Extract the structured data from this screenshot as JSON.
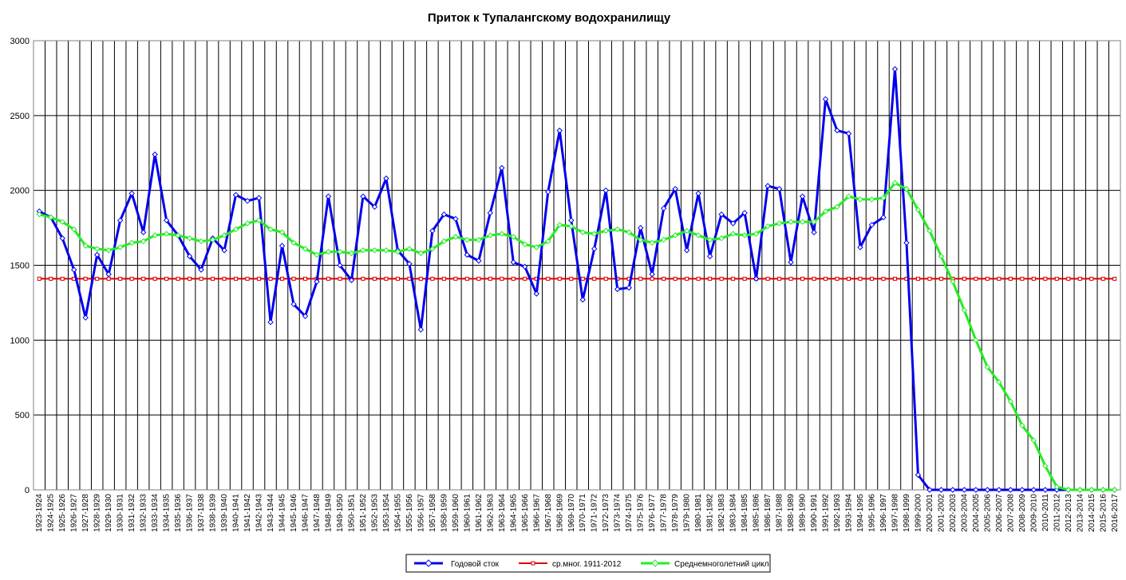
{
  "chart_data": {
    "type": "line",
    "title": "Приток к Тупалангскому водохранилищу",
    "xlabel": "",
    "ylabel": "",
    "ylim": [
      0,
      3000
    ],
    "yticks": [
      0,
      500,
      1000,
      1500,
      2000,
      2500,
      3000
    ],
    "grid": true,
    "legend_position": "bottom-center",
    "categories": [
      "1923-1924",
      "1924-1925",
      "1925-1926",
      "1926-1927",
      "1927-1928",
      "1928-1929",
      "1929-1930",
      "1930-1931",
      "1931-1932",
      "1932-1933",
      "1933-1934",
      "1934-1935",
      "1935-1936",
      "1936-1937",
      "1937-1938",
      "1938-1939",
      "1939-1940",
      "1940-1941",
      "1941-1942",
      "1942-1943",
      "1943-1944",
      "1944-1945",
      "1945-1946",
      "1946-1947",
      "1947-1948",
      "1948-1949",
      "1949-1950",
      "1950-1951",
      "1951-1952",
      "1952-1953",
      "1953-1954",
      "1954-1955",
      "1955-1956",
      "1956-1957",
      "1957-1958",
      "1958-1959",
      "1959-1960",
      "1960-1961",
      "1961-1962",
      "1962-1963",
      "1963-1964",
      "1964-1965",
      "1965-1966",
      "1966-1967",
      "1967-1968",
      "1968-1969",
      "1969-1970",
      "1970-1971",
      "1971-1972",
      "1972-1973",
      "1973-1974",
      "1974-1975",
      "1975-1976",
      "1976-1977",
      "1977-1978",
      "1978-1979",
      "1979-1980",
      "1980-1981",
      "1981-1982",
      "1982-1983",
      "1983-1984",
      "1984-1985",
      "1985-1986",
      "1986-1987",
      "1987-1988",
      "1988-1989",
      "1989-1990",
      "1990-1991",
      "1991-1992",
      "1992-1993",
      "1993-1994",
      "1994-1995",
      "1995-1996",
      "1996-1997",
      "1997-1998",
      "1998-1999",
      "1999-2000",
      "2000-2001",
      "2001-2002",
      "2002-2003",
      "2003-2004",
      "2004-2005",
      "2005-2006",
      "2006-2007",
      "2007-2008",
      "2008-2009",
      "2009-2010",
      "2010-2011",
      "2011-2012",
      "2012-2013",
      "2013-2014",
      "2014-2015",
      "2015-2016",
      "2016-2017"
    ],
    "series": [
      {
        "name": "Годовой сток",
        "color": "#0000ee",
        "marker": "diamond",
        "values": [
          1860,
          1820,
          1680,
          1470,
          1150,
          1570,
          1440,
          1800,
          1980,
          1720,
          2240,
          1800,
          1700,
          1560,
          1470,
          1680,
          1600,
          1970,
          1930,
          1950,
          1120,
          1630,
          1240,
          1160,
          1390,
          1960,
          1500,
          1400,
          1960,
          1890,
          2080,
          1600,
          1510,
          1070,
          1730,
          1840,
          1810,
          1570,
          1530,
          1850,
          2150,
          1520,
          1490,
          1310,
          1990,
          2400,
          1800,
          1270,
          1610,
          2000,
          1340,
          1350,
          1750,
          1440,
          1880,
          2010,
          1600,
          1980,
          1560,
          1840,
          1780,
          1850,
          1410,
          2030,
          2010,
          1520,
          1960,
          1720,
          2610,
          2400,
          2380,
          1620,
          1770,
          1820,
          2810,
          1650,
          100,
          0,
          0,
          0,
          0,
          0,
          0,
          0,
          0,
          0,
          0,
          0,
          0,
          0,
          0,
          0,
          0,
          0
        ]
      },
      {
        "name": "ср.мног. 1911-2012",
        "color": "#dd0000",
        "marker": "square",
        "values": [
          1410,
          1410,
          1410,
          1410,
          1410,
          1410,
          1410,
          1410,
          1410,
          1410,
          1410,
          1410,
          1410,
          1410,
          1410,
          1410,
          1410,
          1410,
          1410,
          1410,
          1410,
          1410,
          1410,
          1410,
          1410,
          1410,
          1410,
          1410,
          1410,
          1410,
          1410,
          1410,
          1410,
          1410,
          1410,
          1410,
          1410,
          1410,
          1410,
          1410,
          1410,
          1410,
          1410,
          1410,
          1410,
          1410,
          1410,
          1410,
          1410,
          1410,
          1410,
          1410,
          1410,
          1410,
          1410,
          1410,
          1410,
          1410,
          1410,
          1410,
          1410,
          1410,
          1410,
          1410,
          1410,
          1410,
          1410,
          1410,
          1410,
          1410,
          1410,
          1410,
          1410,
          1410,
          1410,
          1410,
          1410,
          1410,
          1410,
          1410,
          1410,
          1410,
          1410,
          1410,
          1410,
          1410,
          1410,
          1410,
          1410,
          1410,
          1410,
          1410,
          1410,
          1410
        ]
      },
      {
        "name": "Среднемноголетний цикл",
        "color": "#22ee22",
        "marker": "diamond",
        "values": [
          1840,
          1820,
          1790,
          1740,
          1630,
          1610,
          1600,
          1620,
          1650,
          1660,
          1700,
          1710,
          1700,
          1680,
          1660,
          1670,
          1700,
          1740,
          1780,
          1800,
          1740,
          1720,
          1650,
          1610,
          1570,
          1590,
          1590,
          1580,
          1600,
          1600,
          1600,
          1590,
          1610,
          1580,
          1610,
          1660,
          1690,
          1670,
          1670,
          1700,
          1710,
          1690,
          1640,
          1620,
          1660,
          1770,
          1760,
          1720,
          1710,
          1730,
          1740,
          1720,
          1670,
          1650,
          1670,
          1700,
          1730,
          1700,
          1670,
          1680,
          1710,
          1700,
          1710,
          1760,
          1780,
          1790,
          1790,
          1790,
          1860,
          1890,
          1960,
          1940,
          1940,
          1950,
          2050,
          2010,
          1870,
          1730,
          1560,
          1390,
          1200,
          1000,
          820,
          720,
          590,
          430,
          330,
          160,
          20,
          0,
          0,
          0,
          0,
          0
        ]
      }
    ]
  }
}
